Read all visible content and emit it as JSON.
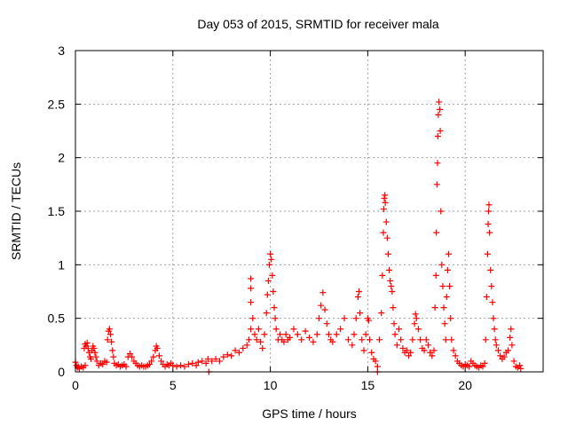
{
  "chart_data": {
    "type": "scatter",
    "title": "Day 053 of 2015, SRMTID for receiver mala",
    "xlabel": "GPS time / hours",
    "ylabel": "SRMTID / TECUs",
    "xlim": [
      0,
      24
    ],
    "ylim": [
      0,
      3
    ],
    "xticks": [
      0,
      5,
      10,
      15,
      20
    ],
    "yticks": [
      0,
      0.5,
      1,
      1.5,
      2,
      2.5,
      3
    ],
    "xtick_labels": [
      "0",
      "5",
      "10",
      "15",
      "20"
    ],
    "ytick_labels": [
      "0",
      "0.5",
      "1",
      "1.5",
      "2",
      "2.5",
      "3"
    ],
    "grid": true,
    "marker": "+",
    "color": "#ff0000",
    "series": [
      {
        "name": "SRMTID",
        "points": [
          [
            0.0,
            0.09
          ],
          [
            0.05,
            0.06
          ],
          [
            0.1,
            0.04
          ],
          [
            0.15,
            0.05
          ],
          [
            0.2,
            0.03
          ],
          [
            0.3,
            0.05
          ],
          [
            0.4,
            0.04
          ],
          [
            0.5,
            0.06
          ],
          [
            0.45,
            0.22
          ],
          [
            0.5,
            0.26
          ],
          [
            0.55,
            0.24
          ],
          [
            0.6,
            0.27
          ],
          [
            0.65,
            0.22
          ],
          [
            0.7,
            0.18
          ],
          [
            0.75,
            0.14
          ],
          [
            0.8,
            0.12
          ],
          [
            0.85,
            0.2
          ],
          [
            0.9,
            0.24
          ],
          [
            0.95,
            0.22
          ],
          [
            1.0,
            0.18
          ],
          [
            1.05,
            0.14
          ],
          [
            1.1,
            0.1
          ],
          [
            1.2,
            0.06
          ],
          [
            1.3,
            0.08
          ],
          [
            1.4,
            0.07
          ],
          [
            1.5,
            0.1
          ],
          [
            1.6,
            0.09
          ],
          [
            1.65,
            0.3
          ],
          [
            1.7,
            0.38
          ],
          [
            1.75,
            0.4
          ],
          [
            1.8,
            0.35
          ],
          [
            1.85,
            0.28
          ],
          [
            1.9,
            0.2
          ],
          [
            1.95,
            0.14
          ],
          [
            2.0,
            0.08
          ],
          [
            2.1,
            0.06
          ],
          [
            2.2,
            0.07
          ],
          [
            2.3,
            0.05
          ],
          [
            2.4,
            0.06
          ],
          [
            2.5,
            0.07
          ],
          [
            2.6,
            0.05
          ],
          [
            2.7,
            0.14
          ],
          [
            2.8,
            0.17
          ],
          [
            2.9,
            0.14
          ],
          [
            3.0,
            0.1
          ],
          [
            3.1,
            0.08
          ],
          [
            3.2,
            0.06
          ],
          [
            3.3,
            0.05
          ],
          [
            3.4,
            0.06
          ],
          [
            3.5,
            0.05
          ],
          [
            3.6,
            0.05
          ],
          [
            3.7,
            0.06
          ],
          [
            3.8,
            0.07
          ],
          [
            3.9,
            0.1
          ],
          [
            4.0,
            0.14
          ],
          [
            4.1,
            0.2
          ],
          [
            4.15,
            0.24
          ],
          [
            4.2,
            0.22
          ],
          [
            4.3,
            0.15
          ],
          [
            4.4,
            0.1
          ],
          [
            4.5,
            0.07
          ],
          [
            4.6,
            0.05
          ],
          [
            4.7,
            0.07
          ],
          [
            4.8,
            0.06
          ],
          [
            4.9,
            0.08
          ],
          [
            5.0,
            0.06
          ],
          [
            5.2,
            0.05
          ],
          [
            5.4,
            0.06
          ],
          [
            5.6,
            0.05
          ],
          [
            5.8,
            0.07
          ],
          [
            6.0,
            0.08
          ],
          [
            6.2,
            0.06
          ],
          [
            6.3,
            0.09
          ],
          [
            6.5,
            0.1
          ],
          [
            6.7,
            0.08
          ],
          [
            6.8,
            0.12
          ],
          [
            6.85,
            0.0
          ],
          [
            7.0,
            0.1
          ],
          [
            7.2,
            0.12
          ],
          [
            7.4,
            0.1
          ],
          [
            7.6,
            0.14
          ],
          [
            7.8,
            0.16
          ],
          [
            8.0,
            0.15
          ],
          [
            8.2,
            0.2
          ],
          [
            8.4,
            0.18
          ],
          [
            8.6,
            0.22
          ],
          [
            8.8,
            0.25
          ],
          [
            8.9,
            0.3
          ],
          [
            9.0,
            0.4
          ],
          [
            9.0,
            0.65
          ],
          [
            9.0,
            0.78
          ],
          [
            9.0,
            0.87
          ],
          [
            9.1,
            0.5
          ],
          [
            9.2,
            0.35
          ],
          [
            9.3,
            0.3
          ],
          [
            9.4,
            0.4
          ],
          [
            9.5,
            0.28
          ],
          [
            9.6,
            0.22
          ],
          [
            9.7,
            0.35
          ],
          [
            9.8,
            0.55
          ],
          [
            9.85,
            0.72
          ],
          [
            9.9,
            0.85
          ],
          [
            9.95,
            1.0
          ],
          [
            10.0,
            1.1
          ],
          [
            10.05,
            1.05
          ],
          [
            10.1,
            0.9
          ],
          [
            10.15,
            0.75
          ],
          [
            10.2,
            0.6
          ],
          [
            10.25,
            0.5
          ],
          [
            10.3,
            0.4
          ],
          [
            10.4,
            0.3
          ],
          [
            10.5,
            0.35
          ],
          [
            10.6,
            0.3
          ],
          [
            10.7,
            0.28
          ],
          [
            10.8,
            0.35
          ],
          [
            10.9,
            0.3
          ],
          [
            11.0,
            0.32
          ],
          [
            11.2,
            0.4
          ],
          [
            11.4,
            0.35
          ],
          [
            11.6,
            0.3
          ],
          [
            11.8,
            0.38
          ],
          [
            12.0,
            0.32
          ],
          [
            12.2,
            0.28
          ],
          [
            12.4,
            0.35
          ],
          [
            12.5,
            0.5
          ],
          [
            12.6,
            0.62
          ],
          [
            12.7,
            0.74
          ],
          [
            12.8,
            0.58
          ],
          [
            12.9,
            0.45
          ],
          [
            13.0,
            0.35
          ],
          [
            13.1,
            0.3
          ],
          [
            13.2,
            0.28
          ],
          [
            13.4,
            0.35
          ],
          [
            13.6,
            0.4
          ],
          [
            13.8,
            0.5
          ],
          [
            14.0,
            0.3
          ],
          [
            14.2,
            0.25
          ],
          [
            14.3,
            0.35
          ],
          [
            14.4,
            0.5
          ],
          [
            14.5,
            0.7
          ],
          [
            14.55,
            0.75
          ],
          [
            14.6,
            0.55
          ],
          [
            14.7,
            0.3
          ],
          [
            14.8,
            0.2
          ],
          [
            14.9,
            0.35
          ],
          [
            15.0,
            0.5
          ],
          [
            15.05,
            0.48
          ],
          [
            15.1,
            0.3
          ],
          [
            15.2,
            0.18
          ],
          [
            15.3,
            0.12
          ],
          [
            15.4,
            0.1
          ],
          [
            15.5,
            0.05
          ],
          [
            15.5,
            0.0
          ],
          [
            15.6,
            0.3
          ],
          [
            15.7,
            0.55
          ],
          [
            15.75,
            0.9
          ],
          [
            15.8,
            1.3
          ],
          [
            15.82,
            1.52
          ],
          [
            15.85,
            1.62
          ],
          [
            15.88,
            1.65
          ],
          [
            15.9,
            1.58
          ],
          [
            15.95,
            1.4
          ],
          [
            16.0,
            1.25
          ],
          [
            16.05,
            1.1
          ],
          [
            16.1,
            0.95
          ],
          [
            16.15,
            0.85
          ],
          [
            16.2,
            0.8
          ],
          [
            16.25,
            0.75
          ],
          [
            16.3,
            0.6
          ],
          [
            16.35,
            0.45
          ],
          [
            16.4,
            0.35
          ],
          [
            16.5,
            0.25
          ],
          [
            16.6,
            0.4
          ],
          [
            16.7,
            0.3
          ],
          [
            16.8,
            0.22
          ],
          [
            16.9,
            0.18
          ],
          [
            17.0,
            0.2
          ],
          [
            17.1,
            0.15
          ],
          [
            17.2,
            0.18
          ],
          [
            17.3,
            0.3
          ],
          [
            17.4,
            0.45
          ],
          [
            17.45,
            0.54
          ],
          [
            17.5,
            0.5
          ],
          [
            17.6,
            0.4
          ],
          [
            17.7,
            0.3
          ],
          [
            17.8,
            0.22
          ],
          [
            17.9,
            0.2
          ],
          [
            18.0,
            0.3
          ],
          [
            18.1,
            0.25
          ],
          [
            18.2,
            0.18
          ],
          [
            18.3,
            0.15
          ],
          [
            18.4,
            0.2
          ],
          [
            18.45,
            0.6
          ],
          [
            18.5,
            0.9
          ],
          [
            18.52,
            1.3
          ],
          [
            18.55,
            1.75
          ],
          [
            18.58,
            1.95
          ],
          [
            18.6,
            2.2
          ],
          [
            18.62,
            2.4
          ],
          [
            18.65,
            2.52
          ],
          [
            18.7,
            2.45
          ],
          [
            18.72,
            2.25
          ],
          [
            18.75,
            1.5
          ],
          [
            18.8,
            1.0
          ],
          [
            18.85,
            0.8
          ],
          [
            18.9,
            0.6
          ],
          [
            18.95,
            0.45
          ],
          [
            19.0,
            0.3
          ],
          [
            19.05,
            0.7
          ],
          [
            19.1,
            0.95
          ],
          [
            19.15,
            1.1
          ],
          [
            19.2,
            0.8
          ],
          [
            19.25,
            0.5
          ],
          [
            19.3,
            0.3
          ],
          [
            19.4,
            0.2
          ],
          [
            19.5,
            0.15
          ],
          [
            19.6,
            0.1
          ],
          [
            19.7,
            0.08
          ],
          [
            19.8,
            0.06
          ],
          [
            19.9,
            0.05
          ],
          [
            20.0,
            0.07
          ],
          [
            20.1,
            0.06
          ],
          [
            20.2,
            0.05
          ],
          [
            20.3,
            0.1
          ],
          [
            20.4,
            0.08
          ],
          [
            20.5,
            0.06
          ],
          [
            20.6,
            0.05
          ],
          [
            20.7,
            0.04
          ],
          [
            20.8,
            0.06
          ],
          [
            20.9,
            0.05
          ],
          [
            21.0,
            0.08
          ],
          [
            21.05,
            0.3
          ],
          [
            21.1,
            0.7
          ],
          [
            21.15,
            1.1
          ],
          [
            21.18,
            1.38
          ],
          [
            21.2,
            1.5
          ],
          [
            21.22,
            1.56
          ],
          [
            21.25,
            1.3
          ],
          [
            21.3,
            0.95
          ],
          [
            21.35,
            0.8
          ],
          [
            21.4,
            0.65
          ],
          [
            21.45,
            0.5
          ],
          [
            21.5,
            0.4
          ],
          [
            21.55,
            0.3
          ],
          [
            21.6,
            0.25
          ],
          [
            21.7,
            0.2
          ],
          [
            21.8,
            0.15
          ],
          [
            21.9,
            0.12
          ],
          [
            22.0,
            0.14
          ],
          [
            22.1,
            0.18
          ],
          [
            22.2,
            0.2
          ],
          [
            22.3,
            0.32
          ],
          [
            22.35,
            0.4
          ],
          [
            22.4,
            0.25
          ],
          [
            22.5,
            0.1
          ],
          [
            22.6,
            0.05
          ],
          [
            22.7,
            0.04
          ],
          [
            22.8,
            0.06
          ],
          [
            22.85,
            0.03
          ]
        ]
      }
    ]
  }
}
